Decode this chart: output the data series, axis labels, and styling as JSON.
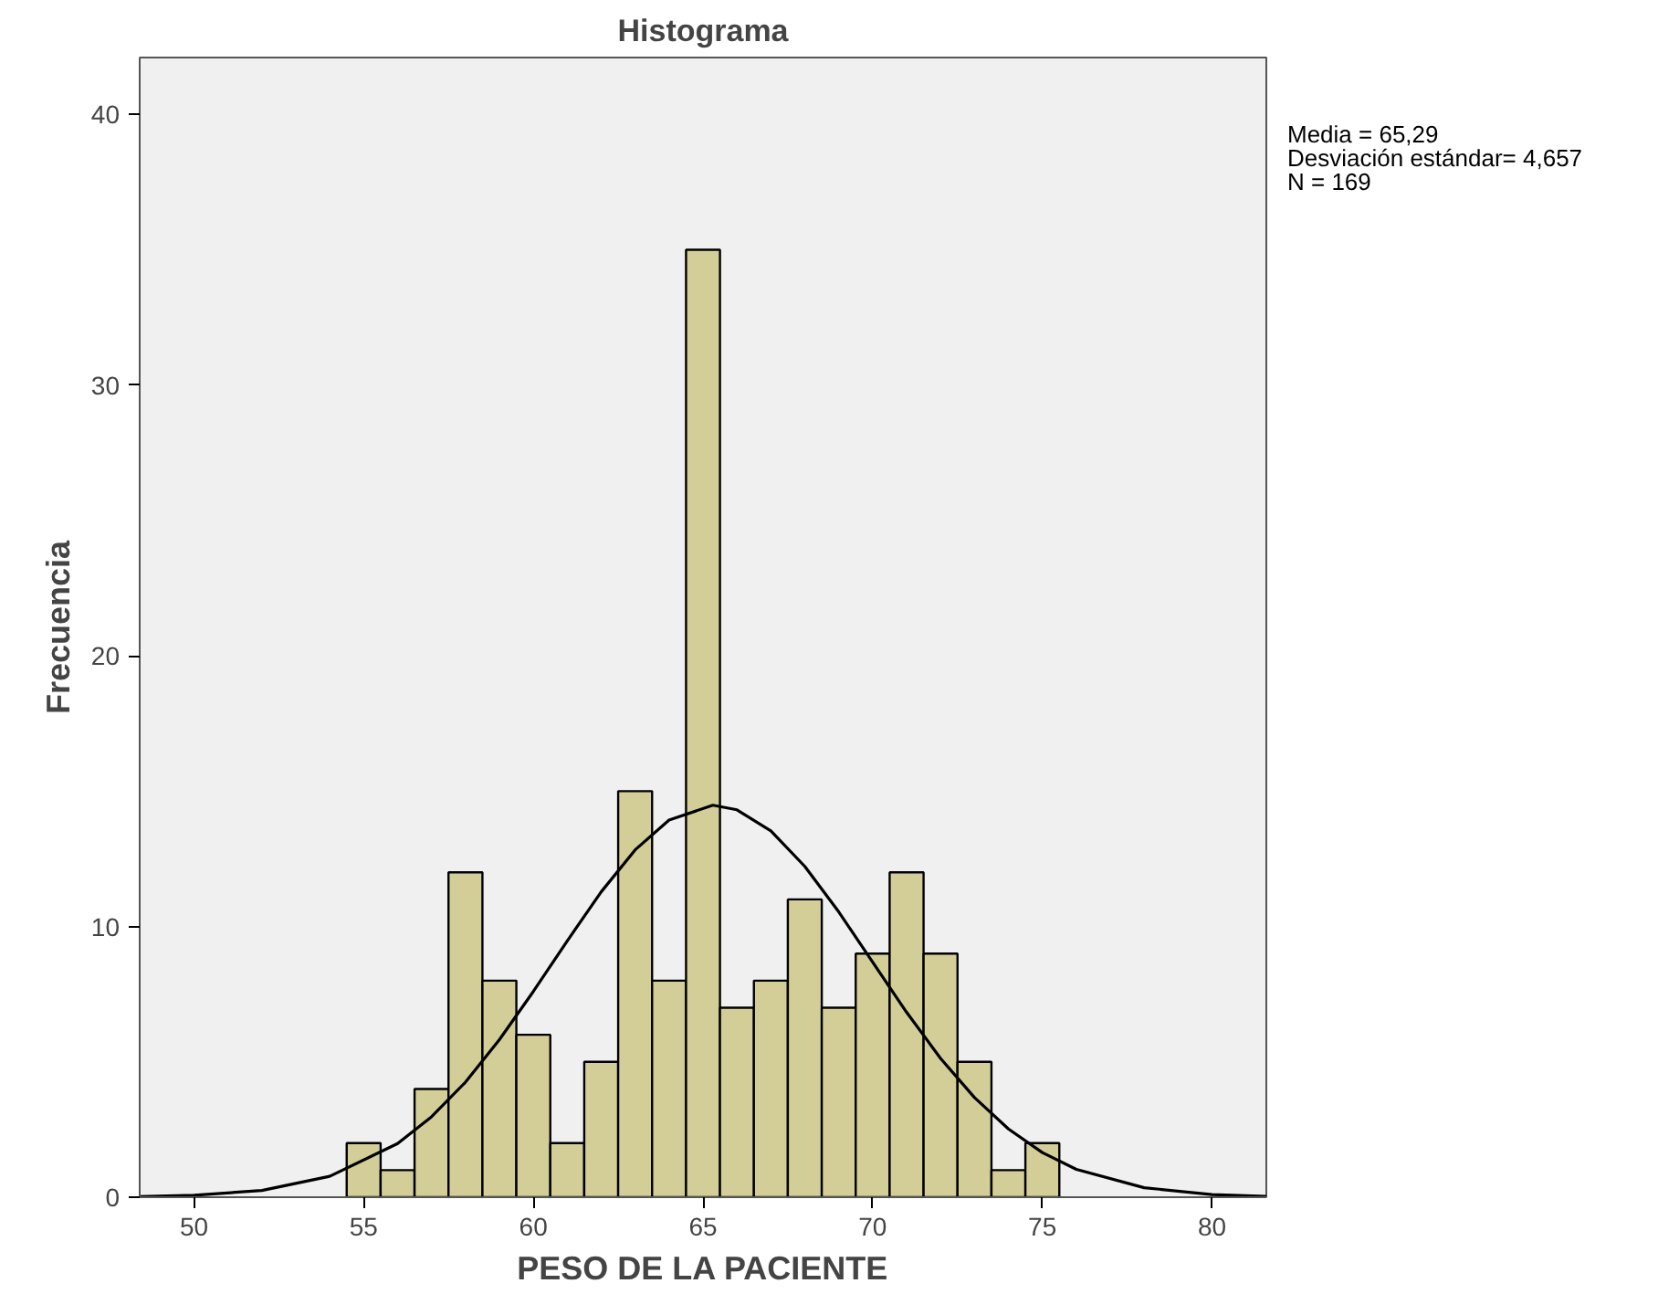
{
  "chart_data": {
    "type": "histogram",
    "title": "Histograma",
    "xlabel": "PESO DE LA PACIENTE",
    "ylabel": "Frecuencia",
    "bins": [
      54.5,
      55.5,
      56.5,
      57.5,
      58.5,
      59.5,
      60.5,
      61.5,
      62.5,
      63.5,
      64.5,
      65.5,
      66.5,
      67.5,
      68.5,
      69.5,
      70.5,
      71.5,
      72.5,
      73.5,
      74.5,
      75.5
    ],
    "values": [
      2,
      1,
      4,
      12,
      8,
      6,
      2,
      5,
      15,
      8,
      35,
      7,
      8,
      11,
      7,
      9,
      12,
      9,
      5,
      1,
      2
    ],
    "color": "#d3ce98",
    "series": [
      {
        "type": "line",
        "color": "#000000",
        "x": [
          48.4,
          50,
          52,
          54,
          56,
          57,
          58,
          59,
          60,
          61,
          62,
          63,
          64,
          65.29,
          66,
          67,
          68,
          69,
          70,
          71,
          72,
          73,
          74,
          75,
          76,
          78,
          80,
          81.6
        ],
        "values": [
          0.02,
          0.07,
          0.25,
          0.77,
          1.98,
          2.97,
          4.25,
          5.82,
          7.6,
          9.47,
          11.28,
          12.83,
          13.93,
          14.48,
          14.31,
          13.53,
          12.22,
          10.54,
          8.68,
          6.83,
          5.13,
          3.68,
          2.52,
          1.65,
          1.03,
          0.35,
          0.1,
          0.03
        ]
      }
    ],
    "annotations": [
      "Media = 65,29",
      "Desviación estándar= 4,657",
      "N = 169"
    ],
    "xlim": [
      48.4,
      81.6
    ],
    "ylim": [
      0,
      42.1
    ],
    "xticks": [
      50,
      55,
      60,
      65,
      70,
      75,
      80
    ],
    "yticks": [
      0,
      10,
      20,
      30,
      40
    ],
    "grid": false
  }
}
